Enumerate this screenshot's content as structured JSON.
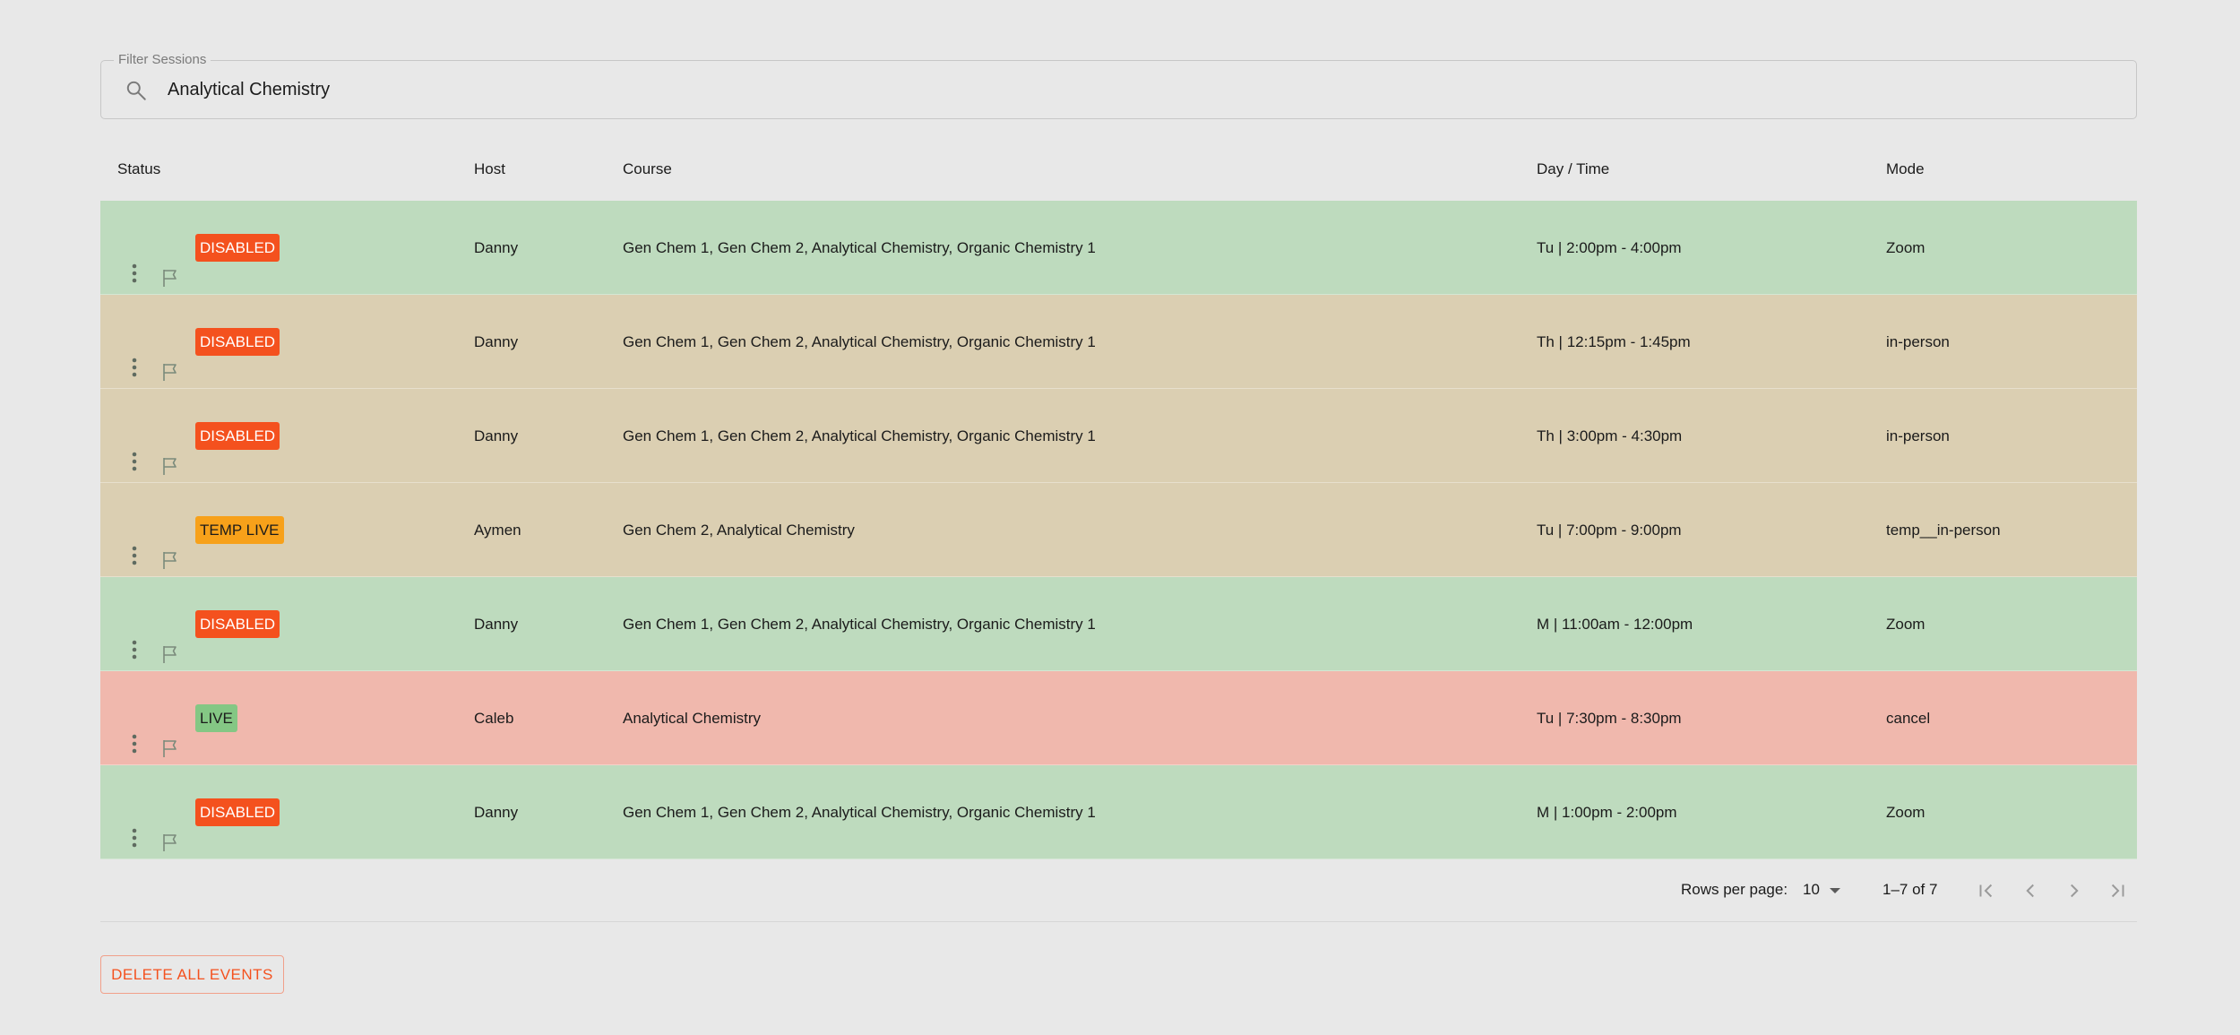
{
  "filter": {
    "legend": "Filter Sessions",
    "value": "Analytical Chemistry",
    "icon": "search-icon"
  },
  "table": {
    "headers": {
      "status": "Status",
      "host": "Host",
      "course": "Course",
      "time": "Day / Time",
      "mode": "Mode"
    },
    "rows": [
      {
        "status": "DISABLED",
        "status_kind": "disabled",
        "row_color": "#bedbbe",
        "host": "Danny",
        "course": "Gen Chem 1, Gen Chem 2, Analytical Chemistry, Organic Chemistry 1",
        "time": "Tu | 2:00pm - 4:00pm",
        "mode": "Zoom"
      },
      {
        "status": "DISABLED",
        "status_kind": "disabled",
        "row_color": "#dbcfb2",
        "host": "Danny",
        "course": "Gen Chem 1, Gen Chem 2, Analytical Chemistry, Organic Chemistry 1",
        "time": "Th | 12:15pm - 1:45pm",
        "mode": "in-person"
      },
      {
        "status": "DISABLED",
        "status_kind": "disabled",
        "row_color": "#dbcfb2",
        "host": "Danny",
        "course": "Gen Chem 1, Gen Chem 2, Analytical Chemistry, Organic Chemistry 1",
        "time": "Th | 3:00pm - 4:30pm",
        "mode": "in-person"
      },
      {
        "status": "TEMP LIVE",
        "status_kind": "temp",
        "row_color": "#dbcfb2",
        "host": "Aymen",
        "course": "Gen Chem 2, Analytical Chemistry",
        "time": "Tu | 7:00pm - 9:00pm",
        "mode": "temp__in-person"
      },
      {
        "status": "DISABLED",
        "status_kind": "disabled",
        "row_color": "#bedbbe",
        "host": "Danny",
        "course": "Gen Chem 1, Gen Chem 2, Analytical Chemistry, Organic Chemistry 1",
        "time": "M | 11:00am - 12:00pm",
        "mode": "Zoom"
      },
      {
        "status": "LIVE",
        "status_kind": "live",
        "row_color": "#f0b8ad",
        "host": "Caleb",
        "course": "Analytical Chemistry",
        "time": "Tu | 7:30pm - 8:30pm",
        "mode": "cancel"
      },
      {
        "status": "DISABLED",
        "status_kind": "disabled",
        "row_color": "#bedbbe",
        "host": "Danny",
        "course": "Gen Chem 1, Gen Chem 2, Analytical Chemistry, Organic Chemistry 1",
        "time": "M | 1:00pm - 2:00pm",
        "mode": "Zoom"
      }
    ]
  },
  "pagination": {
    "rows_per_page_label": "Rows per page:",
    "rows_per_page_value": "10",
    "range": "1–7 of 7"
  },
  "actions": {
    "delete_all_label": "DELETE ALL EVENTS"
  },
  "colors": {
    "background": "#e8e8e8",
    "disabled_badge": "#f4511e",
    "temp_badge": "#f7a11a",
    "live_badge": "#84c784",
    "row_green": "#bedbbe",
    "row_tan": "#dbcfb2",
    "row_red": "#f0b8ad"
  }
}
